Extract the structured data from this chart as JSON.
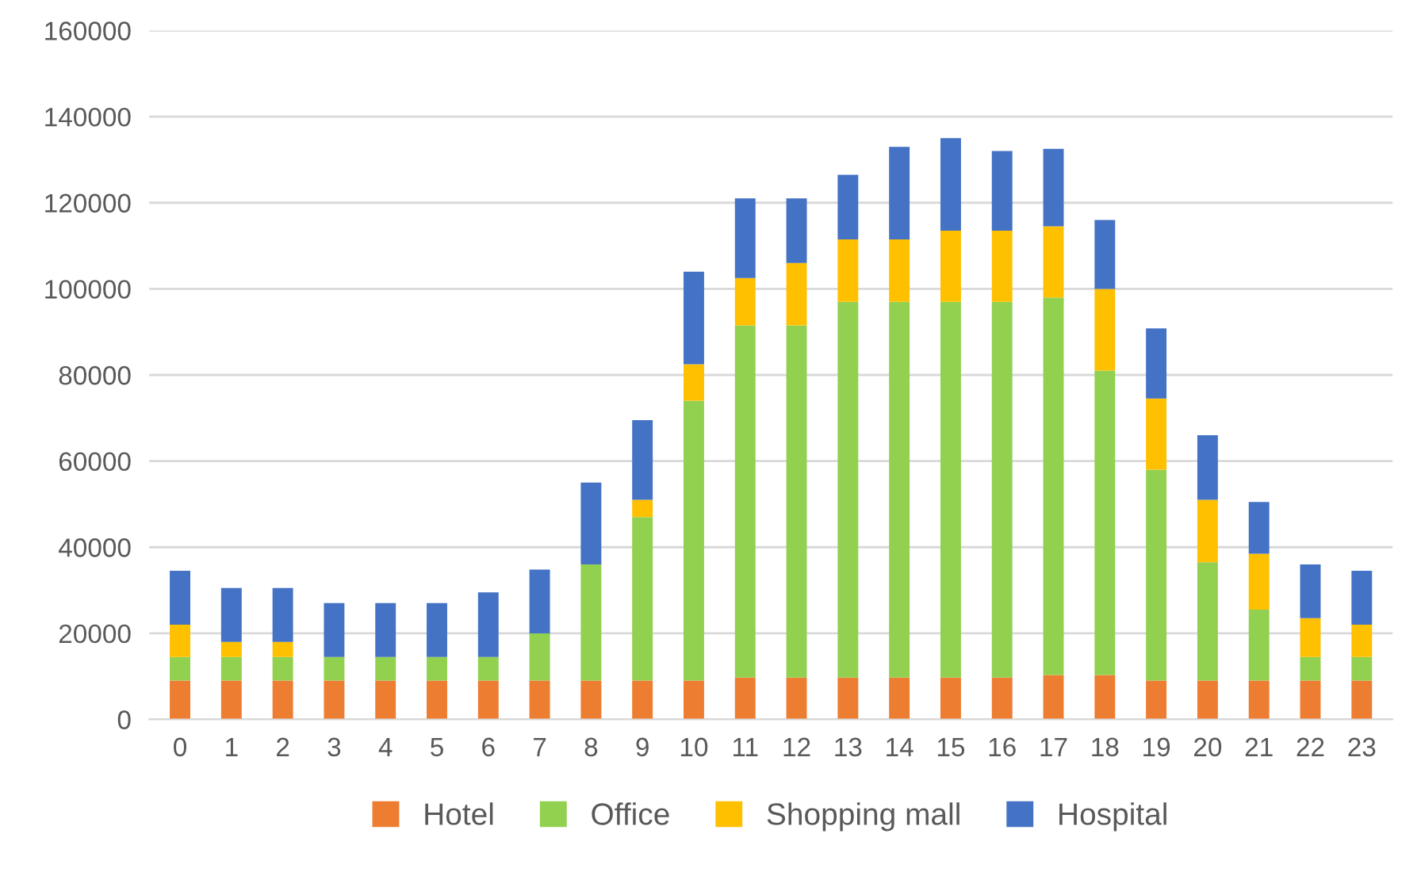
{
  "chart_data": {
    "type": "bar",
    "stacked": true,
    "categories": [
      "0",
      "1",
      "2",
      "3",
      "4",
      "5",
      "6",
      "7",
      "8",
      "9",
      "10",
      "11",
      "12",
      "13",
      "14",
      "15",
      "16",
      "17",
      "18",
      "19",
      "20",
      "21",
      "22",
      "23"
    ],
    "series": [
      {
        "name": "Hotel",
        "color": "#ed7d31",
        "values": [
          9000,
          9000,
          9000,
          9000,
          9000,
          9000,
          9000,
          9000,
          9000,
          9000,
          9000,
          9700,
          9700,
          9700,
          9700,
          9700,
          9700,
          10300,
          10300,
          9000,
          9000,
          9000,
          9000,
          9000
        ]
      },
      {
        "name": "Office",
        "color": "#92d050",
        "values": [
          5500,
          5500,
          5500,
          5500,
          5500,
          5500,
          5500,
          11000,
          27000,
          38000,
          65000,
          81800,
          81800,
          87300,
          87300,
          87300,
          87300,
          87700,
          70700,
          49000,
          27500,
          16500,
          5500,
          5500
        ]
      },
      {
        "name": "Shopping mall",
        "color": "#ffc000",
        "values": [
          7500,
          3500,
          3500,
          0,
          0,
          0,
          0,
          0,
          0,
          4000,
          8500,
          11000,
          14500,
          14500,
          14500,
          16500,
          16500,
          16500,
          19000,
          16500,
          14500,
          13000,
          9000,
          7500
        ]
      },
      {
        "name": "Hospital",
        "color": "#4472c4",
        "values": [
          12500,
          12500,
          12500,
          12500,
          12500,
          12500,
          15000,
          14800,
          19000,
          18500,
          21500,
          18500,
          15000,
          15000,
          21500,
          21500,
          18500,
          18000,
          16000,
          16300,
          15000,
          12000,
          12500,
          12500
        ]
      }
    ],
    "ylim": [
      0,
      160000
    ],
    "yticks": [
      0,
      20000,
      40000,
      60000,
      80000,
      100000,
      120000,
      140000,
      160000
    ],
    "grid": "y",
    "legend": "bottom"
  }
}
